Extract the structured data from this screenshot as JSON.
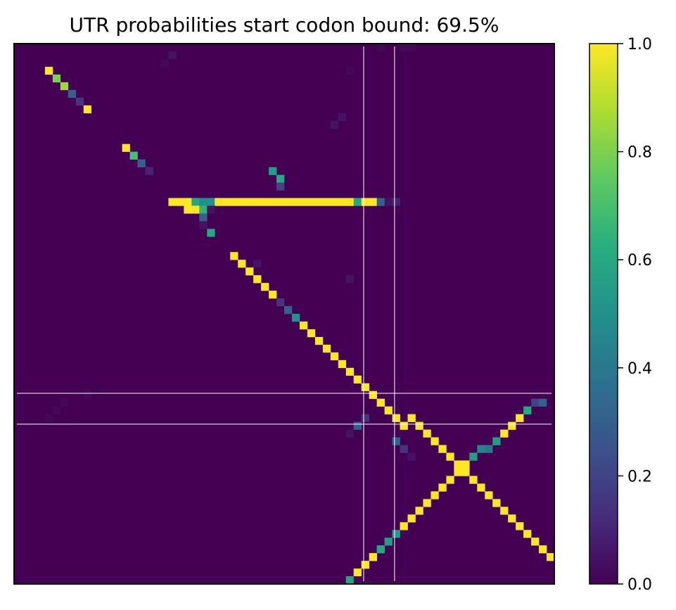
{
  "chart_data": {
    "type": "heatmap",
    "title": "UTR probabilities start codon bound: 69.5%",
    "xlabel": "",
    "ylabel": "",
    "n": 70,
    "colormap": "viridis",
    "colorbar": {
      "min": 0.0,
      "max": 1.0,
      "ticks": [
        "0.0",
        "0.2",
        "0.4",
        "0.6",
        "0.8",
        "1.0"
      ]
    },
    "reference_lines": {
      "vertical": [
        45.3,
        49.3
      ],
      "horizontal": [
        45.3,
        49.3
      ]
    },
    "cells": [
      [
        0,
        47,
        0.02
      ],
      [
        0,
        50,
        0.02
      ],
      [
        0,
        51,
        0.02
      ],
      [
        1,
        20,
        0.05
      ],
      [
        2,
        19,
        0.02
      ],
      [
        3,
        4,
        1.0
      ],
      [
        3,
        43,
        0.02
      ],
      [
        4,
        5,
        0.8
      ],
      [
        5,
        6,
        0.85
      ],
      [
        6,
        7,
        0.3
      ],
      [
        7,
        8,
        0.15
      ],
      [
        8,
        9,
        1.0
      ],
      [
        9,
        42,
        0.05
      ],
      [
        10,
        41,
        0.05
      ],
      [
        13,
        14,
        1.0
      ],
      [
        14,
        15,
        0.7
      ],
      [
        15,
        16,
        0.3
      ],
      [
        16,
        17,
        0.1
      ],
      [
        16,
        33,
        0.55
      ],
      [
        17,
        34,
        0.6
      ],
      [
        18,
        34,
        0.2
      ],
      [
        20,
        20,
        1.0
      ],
      [
        20,
        21,
        1.0
      ],
      [
        20,
        22,
        1.0
      ],
      [
        20,
        23,
        0.6
      ],
      [
        20,
        24,
        0.5
      ],
      [
        20,
        25,
        0.5
      ],
      [
        20,
        26,
        1.0
      ],
      [
        20,
        27,
        1.0
      ],
      [
        20,
        28,
        1.0
      ],
      [
        20,
        29,
        1.0
      ],
      [
        20,
        30,
        1.0
      ],
      [
        20,
        31,
        1.0
      ],
      [
        20,
        32,
        1.0
      ],
      [
        20,
        33,
        1.0
      ],
      [
        20,
        34,
        1.0
      ],
      [
        20,
        35,
        1.0
      ],
      [
        20,
        36,
        1.0
      ],
      [
        20,
        37,
        1.0
      ],
      [
        20,
        38,
        1.0
      ],
      [
        20,
        39,
        1.0
      ],
      [
        20,
        40,
        1.0
      ],
      [
        20,
        41,
        1.0
      ],
      [
        20,
        42,
        1.0
      ],
      [
        20,
        43,
        1.0
      ],
      [
        20,
        44,
        0.6
      ],
      [
        20,
        45,
        1.0
      ],
      [
        20,
        46,
        1.0
      ],
      [
        20,
        47,
        0.3
      ],
      [
        20,
        48,
        0.05
      ],
      [
        20,
        49,
        0.1
      ],
      [
        21,
        22,
        1.0
      ],
      [
        21,
        23,
        1.0
      ],
      [
        21,
        24,
        0.65
      ],
      [
        21,
        25,
        0.05
      ],
      [
        22,
        24,
        0.3
      ],
      [
        23,
        24,
        0.05
      ],
      [
        28,
        31,
        0.05
      ],
      [
        29,
        30,
        0.05
      ],
      [
        30,
        43,
        0.05
      ],
      [
        24,
        25,
        0.6
      ],
      [
        27,
        28,
        1.0
      ],
      [
        28,
        29,
        1.0
      ],
      [
        29,
        30,
        1.0
      ],
      [
        30,
        31,
        1.0
      ],
      [
        31,
        32,
        1.0
      ],
      [
        32,
        33,
        1.0
      ],
      [
        33,
        34,
        0.15
      ],
      [
        34,
        35,
        0.3
      ],
      [
        35,
        36,
        0.5
      ],
      [
        36,
        37,
        1.0
      ],
      [
        37,
        38,
        1.0
      ],
      [
        38,
        39,
        1.0
      ],
      [
        39,
        40,
        1.0
      ],
      [
        40,
        41,
        1.0
      ],
      [
        41,
        42,
        1.0
      ],
      [
        42,
        43,
        1.0
      ],
      [
        43,
        44,
        1.0
      ],
      [
        44,
        45,
        1.0
      ],
      [
        45,
        46,
        1.0
      ],
      [
        46,
        47,
        1.0
      ],
      [
        47,
        48,
        1.0
      ],
      [
        48,
        49,
        1.0
      ],
      [
        49,
        50,
        1.0
      ],
      [
        48,
        51,
        1.0
      ],
      [
        49,
        52,
        1.0
      ],
      [
        50,
        53,
        1.0
      ],
      [
        51,
        54,
        1.0
      ],
      [
        52,
        55,
        1.0
      ],
      [
        53,
        56,
        1.0
      ],
      [
        54,
        57,
        1.0
      ],
      [
        55,
        58,
        1.0
      ],
      [
        56,
        59,
        1.0
      ],
      [
        57,
        60,
        1.0
      ],
      [
        58,
        61,
        1.0
      ],
      [
        59,
        62,
        1.0
      ],
      [
        60,
        63,
        1.0
      ],
      [
        61,
        64,
        1.0
      ],
      [
        62,
        65,
        1.0
      ],
      [
        63,
        66,
        1.0
      ],
      [
        64,
        67,
        1.0
      ],
      [
        65,
        68,
        1.0
      ],
      [
        66,
        69,
        1.0
      ],
      [
        67,
        70,
        1.0
      ],
      [
        46,
        67,
        0.2
      ],
      [
        46,
        68,
        0.3
      ],
      [
        47,
        66,
        0.6
      ],
      [
        48,
        65,
        1.0
      ],
      [
        49,
        64,
        1.0
      ],
      [
        50,
        63,
        1.0
      ],
      [
        51,
        62,
        0.55
      ],
      [
        52,
        61,
        0.4
      ],
      [
        52,
        60,
        0.45
      ],
      [
        53,
        59,
        0.55
      ],
      [
        54,
        58,
        1.0
      ],
      [
        55,
        57,
        1.0
      ],
      [
        56,
        56,
        1.0
      ],
      [
        57,
        55,
        1.0
      ],
      [
        58,
        54,
        1.0
      ],
      [
        59,
        53,
        1.0
      ],
      [
        60,
        52,
        1.0
      ],
      [
        61,
        51,
        1.0
      ],
      [
        62,
        50,
        1.0
      ],
      [
        63,
        49,
        0.55
      ],
      [
        64,
        48,
        0.55
      ],
      [
        65,
        47,
        0.6
      ],
      [
        66,
        46,
        1.0
      ],
      [
        67,
        45,
        1.0
      ],
      [
        68,
        44,
        1.0
      ],
      [
        69,
        43,
        0.6
      ],
      [
        70,
        42,
        0.15
      ],
      [
        48,
        45,
        0.15
      ],
      [
        49,
        44,
        0.3
      ],
      [
        50,
        43,
        0.05
      ],
      [
        51,
        49,
        0.3
      ],
      [
        52,
        50,
        0.15
      ],
      [
        53,
        51,
        0.05
      ],
      [
        69,
        44,
        0.02
      ],
      [
        69,
        45,
        0.02
      ],
      [
        48,
        4,
        0.02
      ],
      [
        47,
        5,
        0.02
      ],
      [
        46,
        6,
        0.02
      ],
      [
        45,
        9,
        0.02
      ]
    ]
  }
}
